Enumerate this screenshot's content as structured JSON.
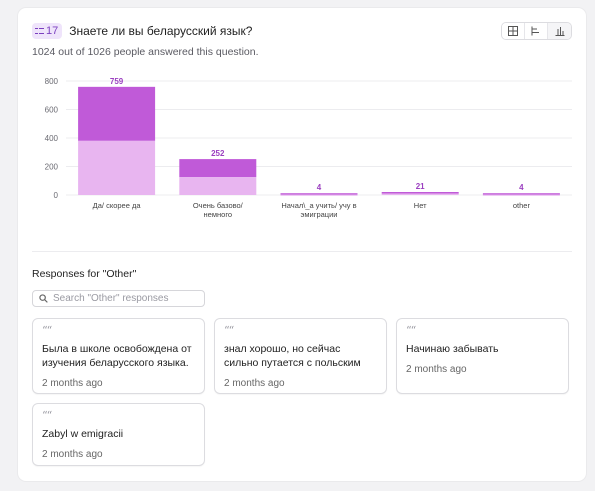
{
  "question": {
    "number": "17",
    "title": "Знаете ли вы беларусский язык?",
    "answered_text": "1024 out of 1026 people answered this question."
  },
  "view_switch": {
    "icons": [
      "grid-icon",
      "list-bars-icon",
      "bar-chart-icon"
    ],
    "active": "bar-chart-icon"
  },
  "colors": {
    "bar_dark": "#c05ad8",
    "bar_light": "#e8b5f0",
    "value_label": "#9b3fc0",
    "grid": "#ececef",
    "axis_text": "#6a6a72"
  },
  "chart_data": {
    "type": "bar",
    "categories": [
      "Да/ скорее да",
      "Очень базово/ немного",
      "Начал\\_а учить/ учу в эмиграции",
      "Нет",
      "other"
    ],
    "category_lines": [
      [
        "Да/ скорее да"
      ],
      [
        "Очень базово/",
        "немного"
      ],
      [
        "Начал\\_а учить/ учу в",
        "эмиграции"
      ],
      [
        "Нет"
      ],
      [
        "other"
      ]
    ],
    "values": [
      759,
      252,
      4,
      21,
      4
    ],
    "light_portion": [
      380,
      125,
      2,
      10,
      2
    ],
    "y_ticks": [
      0,
      200,
      400,
      600,
      800
    ],
    "ylim": [
      0,
      800
    ],
    "grid": true,
    "legend": "none"
  },
  "other_responses": {
    "title": "Responses for \"Other\"",
    "search_placeholder": "Search \"Other\" responses",
    "items": [
      {
        "text": "Была в школе освобождена от изучения беларусского языка.",
        "date": "2 months ago"
      },
      {
        "text": "знал хорошо, но сейчас сильно путается с польским",
        "date": "2 months ago"
      },
      {
        "text": "Начинаю забывать",
        "date": "2 months ago"
      },
      {
        "text": "Zabyl w emigracii",
        "date": "2 months ago"
      }
    ]
  }
}
